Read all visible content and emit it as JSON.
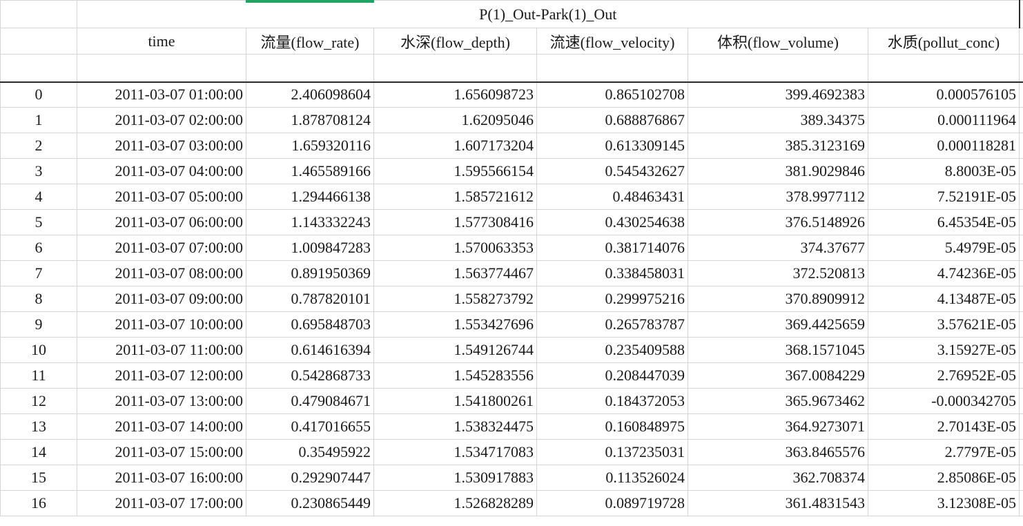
{
  "sheet": {
    "group_header": "P(1)_Out-Park(1)_Out",
    "columns": [
      "time",
      "流量(flow_rate)",
      "水深(flow_depth)",
      "流速(flow_velocity)",
      "体积(flow_volume)",
      "水质(pollut_conc)"
    ],
    "rows": [
      {
        "idx": "0",
        "time": "2011-03-07 01:00:00",
        "rate": "2.406098604",
        "depth": "1.656098723",
        "vel": "0.865102708",
        "vol": "399.4692383",
        "conc": "0.000576105"
      },
      {
        "idx": "1",
        "time": "2011-03-07 02:00:00",
        "rate": "1.878708124",
        "depth": "1.62095046",
        "vel": "0.688876867",
        "vol": "389.34375",
        "conc": "0.000111964"
      },
      {
        "idx": "2",
        "time": "2011-03-07 03:00:00",
        "rate": "1.659320116",
        "depth": "1.607173204",
        "vel": "0.613309145",
        "vol": "385.3123169",
        "conc": "0.000118281"
      },
      {
        "idx": "3",
        "time": "2011-03-07 04:00:00",
        "rate": "1.465589166",
        "depth": "1.595566154",
        "vel": "0.545432627",
        "vol": "381.9029846",
        "conc": "8.8003E-05"
      },
      {
        "idx": "4",
        "time": "2011-03-07 05:00:00",
        "rate": "1.294466138",
        "depth": "1.585721612",
        "vel": "0.48463431",
        "vol": "378.9977112",
        "conc": "7.52191E-05"
      },
      {
        "idx": "5",
        "time": "2011-03-07 06:00:00",
        "rate": "1.143332243",
        "depth": "1.577308416",
        "vel": "0.430254638",
        "vol": "376.5148926",
        "conc": "6.45354E-05"
      },
      {
        "idx": "6",
        "time": "2011-03-07 07:00:00",
        "rate": "1.009847283",
        "depth": "1.570063353",
        "vel": "0.381714076",
        "vol": "374.37677",
        "conc": "5.4979E-05"
      },
      {
        "idx": "7",
        "time": "2011-03-07 08:00:00",
        "rate": "0.891950369",
        "depth": "1.563774467",
        "vel": "0.338458031",
        "vol": "372.520813",
        "conc": "4.74236E-05"
      },
      {
        "idx": "8",
        "time": "2011-03-07 09:00:00",
        "rate": "0.787820101",
        "depth": "1.558273792",
        "vel": "0.299975216",
        "vol": "370.8909912",
        "conc": "4.13487E-05"
      },
      {
        "idx": "9",
        "time": "2011-03-07 10:00:00",
        "rate": "0.695848703",
        "depth": "1.553427696",
        "vel": "0.265783787",
        "vol": "369.4425659",
        "conc": "3.57621E-05"
      },
      {
        "idx": "10",
        "time": "2011-03-07 11:00:00",
        "rate": "0.614616394",
        "depth": "1.549126744",
        "vel": "0.235409588",
        "vol": "368.1571045",
        "conc": "3.15927E-05"
      },
      {
        "idx": "11",
        "time": "2011-03-07 12:00:00",
        "rate": "0.542868733",
        "depth": "1.545283556",
        "vel": "0.208447039",
        "vol": "367.0084229",
        "conc": "2.76952E-05"
      },
      {
        "idx": "12",
        "time": "2011-03-07 13:00:00",
        "rate": "0.479084671",
        "depth": "1.541800261",
        "vel": "0.184372053",
        "vol": "365.9673462",
        "conc": "-0.000342705"
      },
      {
        "idx": "13",
        "time": "2011-03-07 14:00:00",
        "rate": "0.417016655",
        "depth": "1.538324475",
        "vel": "0.160848975",
        "vol": "364.9273071",
        "conc": "2.70143E-05"
      },
      {
        "idx": "14",
        "time": "2011-03-07 15:00:00",
        "rate": "0.35495922",
        "depth": "1.534717083",
        "vel": "0.137235031",
        "vol": "363.8465576",
        "conc": "2.7797E-05"
      },
      {
        "idx": "15",
        "time": "2011-03-07 16:00:00",
        "rate": "0.292907447",
        "depth": "1.530917883",
        "vel": "0.113526024",
        "vol": "362.708374",
        "conc": "2.85086E-05"
      },
      {
        "idx": "16",
        "time": "2011-03-07 17:00:00",
        "rate": "0.230865449",
        "depth": "1.526828289",
        "vel": "0.089719728",
        "vol": "361.4831543",
        "conc": "3.12308E-05"
      }
    ]
  },
  "colors": {
    "selection_accent": "#21a366",
    "grid_line": "#d4d4d4",
    "strong_border": "#2a2a2a"
  }
}
